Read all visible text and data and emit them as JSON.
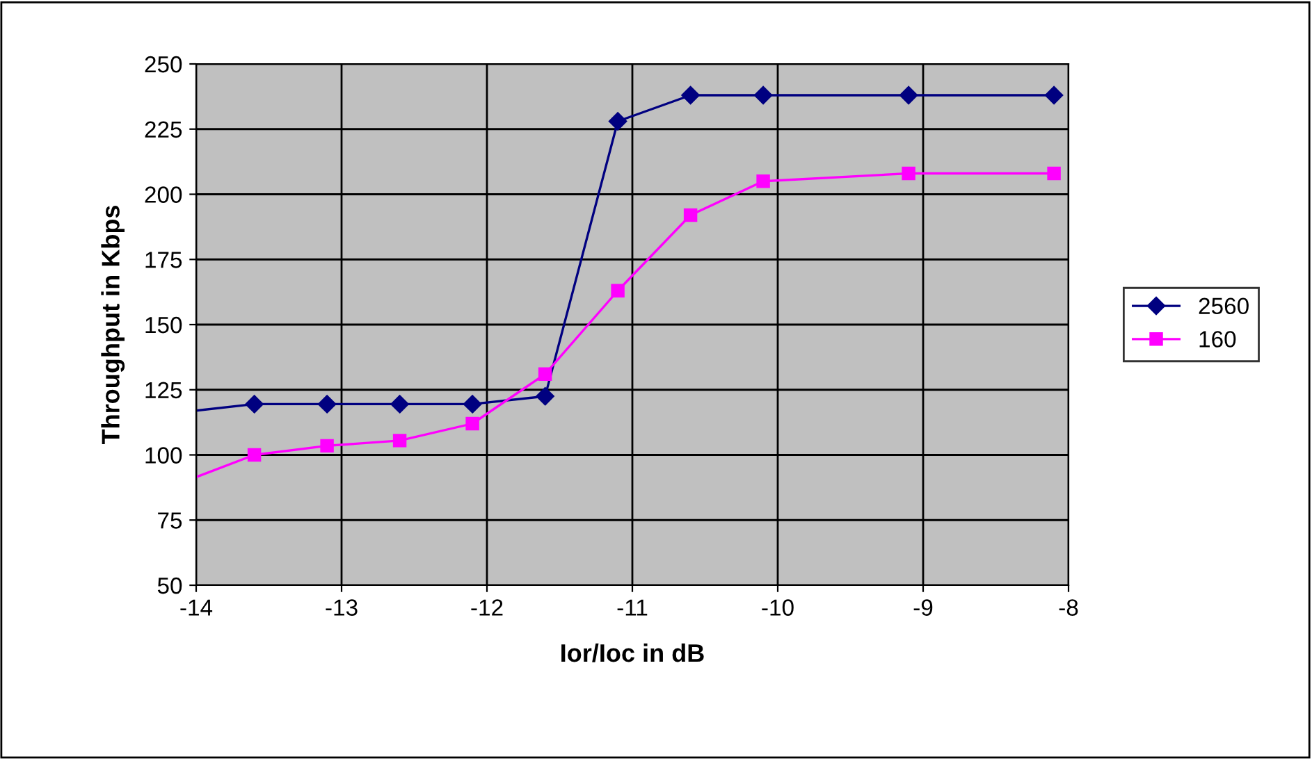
{
  "chart_data": {
    "type": "line",
    "xlabel": "Ior/Ioc in dB",
    "ylabel": "Throughput in Kbps",
    "x": [
      -14,
      -13.6,
      -13.1,
      -12.6,
      -12.1,
      -11.6,
      -11.1,
      -10.6,
      -10.1,
      -9.1,
      -8.1
    ],
    "series": [
      {
        "name": "2560",
        "color": "#000080",
        "marker": "diamond",
        "values": [
          117,
          119.5,
          119.5,
          119.5,
          119.5,
          122.5,
          228,
          238,
          238,
          238,
          238
        ]
      },
      {
        "name": "160",
        "color": "#ff00ff",
        "marker": "square",
        "values": [
          91.5,
          100,
          103.5,
          105.5,
          112,
          131,
          163,
          192,
          205,
          208,
          208
        ]
      }
    ],
    "xlim": [
      -14,
      -8
    ],
    "xticks": [
      -14,
      -13,
      -12,
      -11,
      -10,
      -9,
      -8
    ],
    "ylim": [
      50,
      250
    ],
    "yticks": [
      50,
      75,
      100,
      125,
      150,
      175,
      200,
      225,
      250
    ],
    "grid": true,
    "legend": "right",
    "line_style": "solid"
  }
}
